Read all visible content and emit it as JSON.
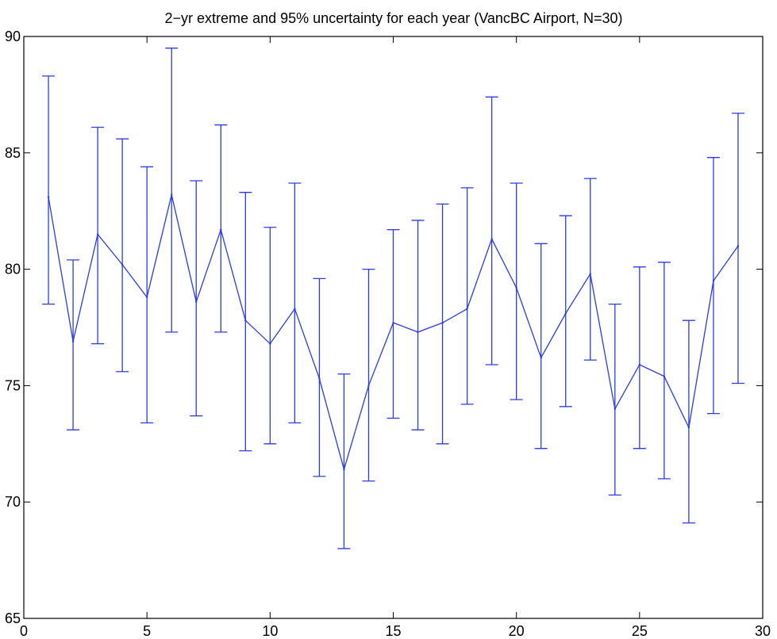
{
  "chart_data": {
    "type": "line",
    "title": "2−yr extreme and 95% uncertainty for each year (VancBC Airport, N=30)",
    "xlabel": "",
    "ylabel": "",
    "xlim": [
      0,
      30
    ],
    "ylim": [
      65,
      90
    ],
    "xticks": [
      0,
      5,
      10,
      15,
      20,
      25,
      30
    ],
    "yticks": [
      65,
      70,
      75,
      80,
      85,
      90
    ],
    "grid": false,
    "legend": "none",
    "error_bars": true,
    "series": [
      {
        "color": "#2b3bea",
        "x": [
          1,
          2,
          3,
          4,
          5,
          6,
          7,
          8,
          9,
          10,
          11,
          12,
          13,
          14,
          15,
          16,
          17,
          18,
          19,
          20,
          21,
          22,
          23,
          24,
          25,
          26,
          27,
          28,
          29
        ],
        "y": [
          83.1,
          76.9,
          81.5,
          80.2,
          78.8,
          83.2,
          78.6,
          81.7,
          77.8,
          76.8,
          78.3,
          75.3,
          71.4,
          75.0,
          77.7,
          77.3,
          77.7,
          78.3,
          81.3,
          79.2,
          76.2,
          78.1,
          79.8,
          74.0,
          75.9,
          75.4,
          73.2,
          79.5,
          81.0
        ],
        "lower": [
          78.5,
          73.1,
          76.8,
          75.6,
          73.4,
          77.3,
          73.7,
          77.3,
          72.2,
          72.5,
          73.4,
          71.1,
          68.0,
          70.9,
          73.6,
          73.1,
          72.5,
          74.2,
          75.9,
          74.4,
          72.3,
          74.1,
          76.1,
          70.3,
          72.3,
          71.0,
          69.1,
          73.8,
          75.1
        ],
        "upper": [
          88.3,
          80.4,
          86.1,
          85.6,
          84.4,
          89.5,
          83.8,
          86.2,
          83.3,
          81.8,
          83.7,
          79.6,
          75.5,
          80.0,
          81.7,
          82.1,
          82.8,
          83.5,
          87.4,
          83.7,
          81.1,
          82.3,
          83.9,
          78.5,
          80.1,
          80.3,
          77.8,
          84.8,
          86.7
        ]
      }
    ]
  }
}
